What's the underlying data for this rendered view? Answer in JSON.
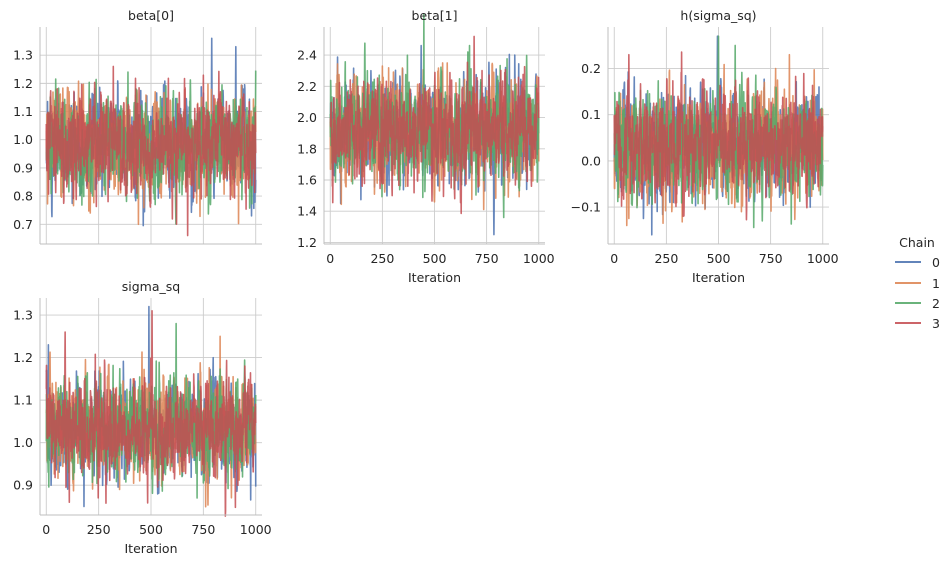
{
  "chart_data": {
    "type": "line",
    "legend": {
      "title": "Chain",
      "placement": "right",
      "entries": [
        {
          "name": "0",
          "color": "#4c72b0"
        },
        {
          "name": "1",
          "color": "#dd8452"
        },
        {
          "name": "2",
          "color": "#55a868"
        },
        {
          "name": "3",
          "color": "#c44e52"
        }
      ]
    },
    "x_ticks": [
      "0",
      "250",
      "500",
      "750",
      "1000"
    ],
    "xlim": [
      -30,
      1030
    ],
    "n_iterations": 1000,
    "panels": [
      {
        "title": "beta[0]",
        "xlabel": "",
        "show_x_ticklabels": false,
        "ylim": [
          0.63,
          1.4
        ],
        "y_ticks": [
          0.7,
          0.8,
          0.9,
          1.0,
          1.1,
          1.2,
          1.3
        ],
        "y_ticklabels": [
          "0.7",
          "0.8",
          "0.9",
          "1.0",
          "1.1",
          "1.2",
          "1.3"
        ],
        "mean": 0.985,
        "sd": 0.085,
        "series": [
          {
            "chain": "0",
            "peaks": [
              [
                790,
                1.36
              ],
              [
                905,
                1.33
              ],
              [
                980,
                0.73
              ]
            ]
          },
          {
            "chain": "1",
            "peaks": [
              [
                440,
                0.7
              ],
              [
                210,
                0.74
              ]
            ]
          },
          {
            "chain": "2",
            "peaks": [
              [
                390,
                1.24
              ],
              [
                520,
                0.77
              ]
            ]
          },
          {
            "chain": "3",
            "peaks": [
              [
                675,
                0.66
              ],
              [
                320,
                1.26
              ]
            ]
          }
        ]
      },
      {
        "title": "beta[1]",
        "xlabel": "Iteration",
        "show_x_ticklabels": true,
        "ylim": [
          1.19,
          2.58
        ],
        "y_ticks": [
          1.2,
          1.4,
          1.6,
          1.8,
          2.0,
          2.2,
          2.4
        ],
        "y_ticklabels": [
          "1.2",
          "1.4",
          "1.6",
          "1.8",
          "2.0",
          "2.2",
          "2.4"
        ],
        "mean": 1.92,
        "sd": 0.16,
        "series": [
          {
            "chain": "0",
            "peaks": [
              [
                785,
                1.25
              ],
              [
                885,
                2.4
              ],
              [
                50,
                1.45
              ]
            ]
          },
          {
            "chain": "1",
            "peaks": [
              [
                500,
                1.46
              ],
              [
                250,
                2.33
              ]
            ]
          },
          {
            "chain": "2",
            "peaks": [
              [
                660,
                2.42
              ],
              [
                150,
                1.62
              ]
            ]
          },
          {
            "chain": "3",
            "peaks": [
              [
                690,
                2.52
              ],
              [
                580,
                1.55
              ]
            ]
          }
        ]
      },
      {
        "title": "h(sigma_sq)",
        "xlabel": "Iteration",
        "show_x_ticklabels": true,
        "ylim": [
          -0.18,
          0.29
        ],
        "y_ticks": [
          -0.1,
          0.0,
          0.1,
          0.2
        ],
        "y_ticklabels": [
          "−0.1",
          "0.0",
          "0.1",
          "0.2"
        ],
        "mean": 0.035,
        "sd": 0.055,
        "series": [
          {
            "chain": "0",
            "peaks": [
              [
                495,
                0.27
              ],
              [
                180,
                -0.16
              ],
              [
                940,
                -0.1
              ]
            ]
          },
          {
            "chain": "1",
            "peaks": [
              [
                840,
                0.23
              ],
              [
                610,
                -0.11
              ]
            ]
          },
          {
            "chain": "2",
            "peaks": [
              [
                500,
                0.27
              ],
              [
                580,
                0.25
              ],
              [
                710,
                -0.13
              ]
            ]
          },
          {
            "chain": "3",
            "peaks": [
              [
                70,
                0.23
              ],
              [
                330,
                -0.12
              ]
            ]
          }
        ]
      },
      {
        "title": "sigma_sq",
        "xlabel": "Iteration",
        "show_x_ticklabels": true,
        "ylim": [
          0.83,
          1.34
        ],
        "y_ticks": [
          0.9,
          1.0,
          1.1,
          1.2,
          1.3
        ],
        "y_ticklabels": [
          "0.9",
          "1.0",
          "1.1",
          "1.2",
          "1.3"
        ],
        "mean": 1.03,
        "sd": 0.055,
        "series": [
          {
            "chain": "0",
            "peaks": [
              [
                490,
                1.32
              ],
              [
                180,
                0.85
              ],
              [
                10,
                1.23
              ]
            ]
          },
          {
            "chain": "1",
            "peaks": [
              [
                830,
                1.25
              ],
              [
                350,
                0.89
              ]
            ]
          },
          {
            "chain": "2",
            "peaks": [
              [
                620,
                1.28
              ],
              [
                720,
                0.87
              ]
            ]
          },
          {
            "chain": "3",
            "peaks": [
              [
                90,
                1.26
              ],
              [
                110,
                0.86
              ],
              [
                505,
                1.31
              ]
            ]
          }
        ]
      }
    ]
  }
}
